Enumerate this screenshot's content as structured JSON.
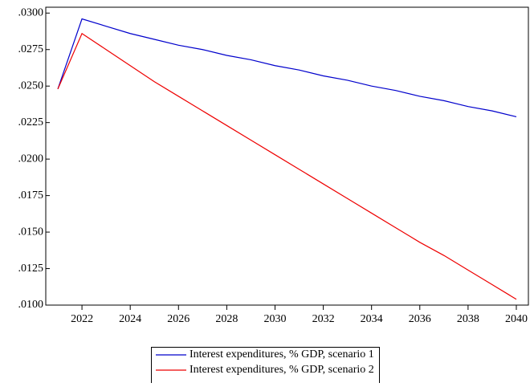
{
  "chart_data": {
    "type": "line",
    "x": [
      2021,
      2022,
      2023,
      2024,
      2025,
      2026,
      2027,
      2028,
      2029,
      2030,
      2031,
      2032,
      2033,
      2034,
      2035,
      2036,
      2037,
      2038,
      2039,
      2040
    ],
    "series": [
      {
        "name": "Interest expenditures, % GDP, scenario 1",
        "color": "#0000cc",
        "values": [
          0.0248,
          0.0296,
          0.0291,
          0.0286,
          0.0282,
          0.0278,
          0.0275,
          0.0271,
          0.0268,
          0.0264,
          0.0261,
          0.0257,
          0.0254,
          0.025,
          0.0247,
          0.0243,
          0.024,
          0.0236,
          0.0233,
          0.0229
        ]
      },
      {
        "name": "Interest expenditures, % GDP, scenario 2",
        "color": "#ee0000",
        "values": [
          0.0248,
          0.0286,
          0.0275,
          0.0264,
          0.0253,
          0.0243,
          0.0233,
          0.0223,
          0.0213,
          0.0203,
          0.0193,
          0.0183,
          0.0173,
          0.0163,
          0.0153,
          0.0143,
          0.0134,
          0.0124,
          0.0114,
          0.0104
        ]
      }
    ],
    "xlim": [
      2020.5,
      2040.5
    ],
    "xticks": [
      2022,
      2024,
      2026,
      2028,
      2030,
      2032,
      2034,
      2036,
      2038,
      2040
    ],
    "ylim": [
      0.01,
      0.0304
    ],
    "yticks": [
      {
        "value": 0.01,
        "label": ".0100"
      },
      {
        "value": 0.0125,
        "label": ".0125"
      },
      {
        "value": 0.015,
        "label": ".0150"
      },
      {
        "value": 0.0175,
        "label": ".0175"
      },
      {
        "value": 0.02,
        "label": ".0200"
      },
      {
        "value": 0.0225,
        "label": ".0225"
      },
      {
        "value": 0.025,
        "label": ".0250"
      },
      {
        "value": 0.0275,
        "label": ".0275"
      },
      {
        "value": 0.03,
        "label": ".0300"
      }
    ],
    "legend": "bottom"
  }
}
